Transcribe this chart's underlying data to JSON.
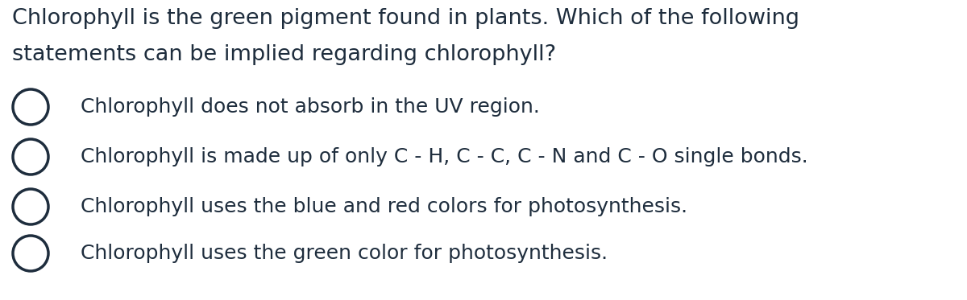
{
  "background_color": "#ffffff",
  "text_color": "#1e2d3d",
  "question_line1": "Chlorophyll is the green pigment found in plants. Which of the following",
  "question_line2": "statements can be implied regarding chlorophyll?",
  "options": [
    "Chlorophyll does not absorb in the UV region.",
    "Chlorophyll is made up of only C - H, C - C, C - N and C - O single bonds.",
    "Chlorophyll uses the blue and red colors for photosynthesis.",
    "Chlorophyll uses the green color for photosynthesis."
  ],
  "question_fontsize": 19.5,
  "option_fontsize": 18,
  "circle_linewidth": 2.5,
  "font_family": "DejaVu Sans",
  "fig_width": 12.0,
  "fig_height": 3.73,
  "dpi": 100
}
